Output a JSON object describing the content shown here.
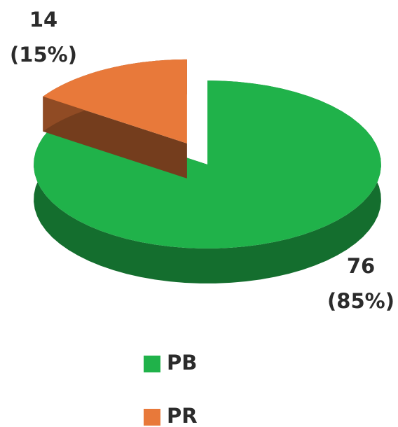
{
  "chart_data": {
    "type": "pie3d",
    "categories": [
      "PB",
      "PR"
    ],
    "values": [
      76,
      14
    ],
    "percent_labels": [
      "(85%)",
      "(15%)"
    ],
    "colors": [
      "#20b24a",
      "#e8793a"
    ],
    "legend": "bottom"
  }
}
